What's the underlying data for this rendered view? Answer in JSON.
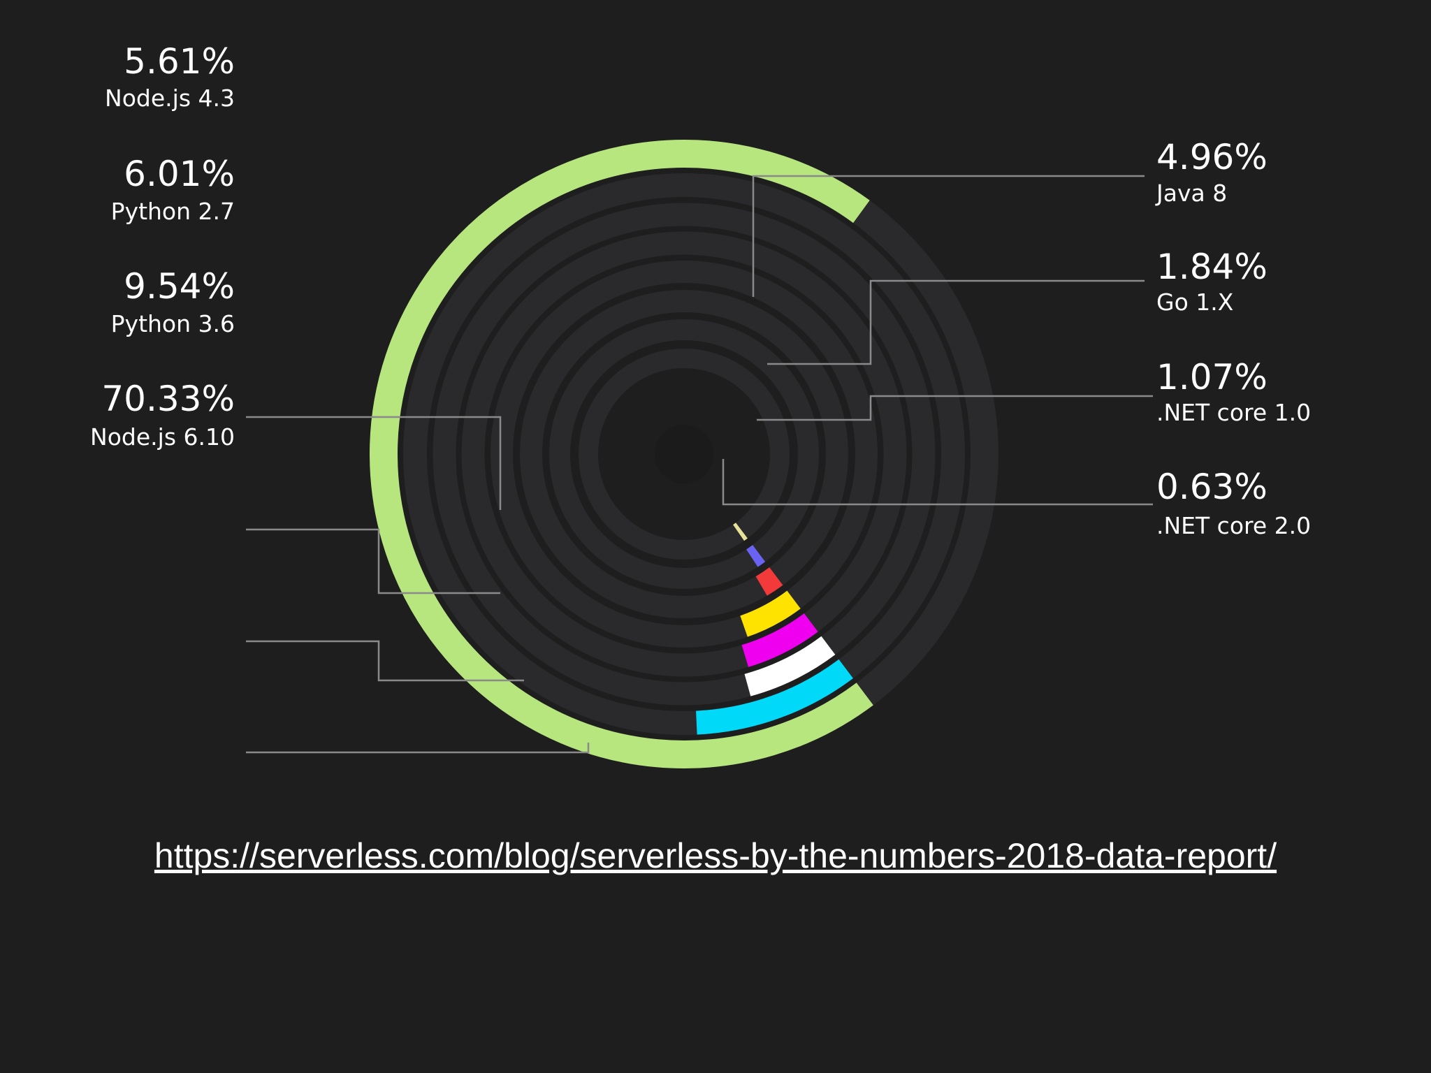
{
  "chart_data": {
    "type": "radial-bar",
    "title": "",
    "colors": {
      "background": "#1e1e1f",
      "track": "#2a2a2d"
    },
    "series": [
      {
        "name": "Node.js 6.10",
        "value": 70.33,
        "label": "70.33%",
        "color": "#b7e57e"
      },
      {
        "name": "Python 3.6",
        "value": 9.54,
        "label": "9.54%",
        "color": "#00d9f7"
      },
      {
        "name": "Python 2.7",
        "value": 6.01,
        "label": "6.01%",
        "color": "#ffffff"
      },
      {
        "name": "Node.js 4.3",
        "value": 5.61,
        "label": "5.61%",
        "color": "#ef00ee"
      },
      {
        "name": "Java 8",
        "value": 4.96,
        "label": "4.96%",
        "color": "#ffe300"
      },
      {
        "name": "Go 1.X",
        "value": 1.84,
        "label": "1.84%",
        "color": "#f23a3a"
      },
      {
        "name": ".NET core 1.0",
        "value": 1.07,
        "label": "1.07%",
        "color": "#6a63f2"
      },
      {
        "name": ".NET core 2.0",
        "value": 0.63,
        "label": "0.63%",
        "color": "#e6e29a"
      }
    ]
  },
  "source": {
    "url": "https://serverless.com/blog/serverless-by-the-numbers-2018-data-report/"
  }
}
